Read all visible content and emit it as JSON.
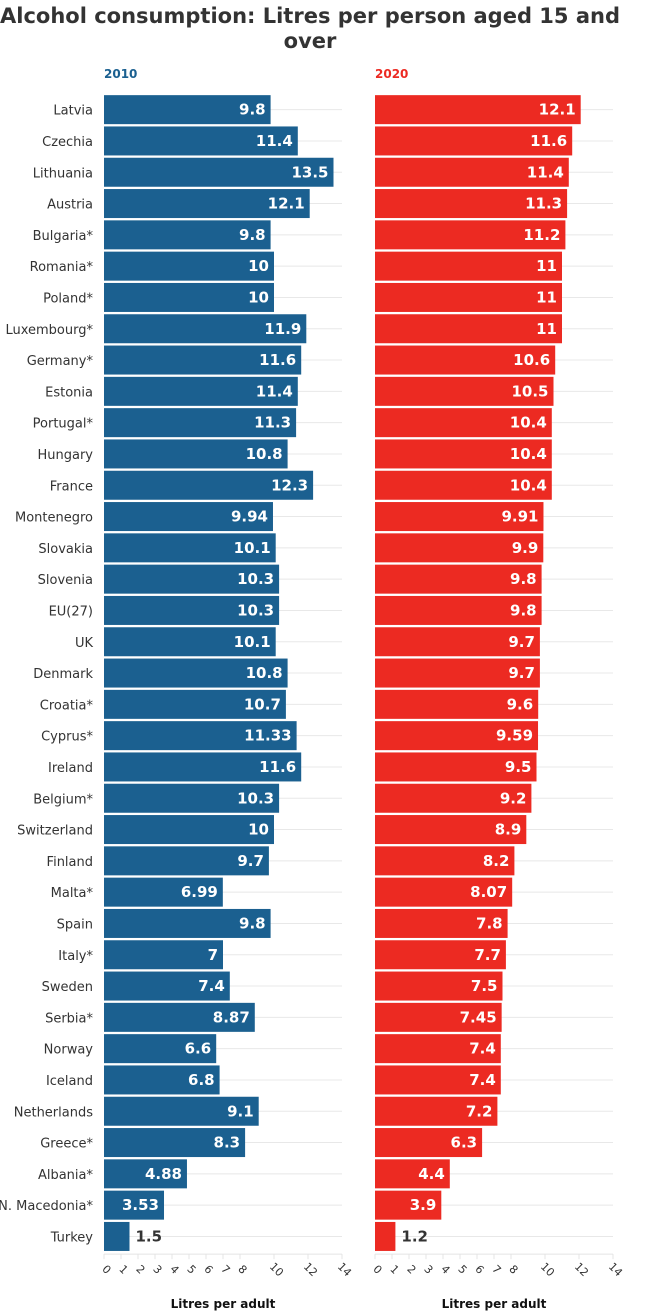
{
  "chart_data": {
    "type": "bar",
    "orientation": "horizontal",
    "title": "Alcohol consumption: Litres per person aged 15 and over",
    "categories": [
      "Latvia",
      "Czechia",
      "Lithuania",
      "Austria",
      "Bulgaria*",
      "Romania*",
      "Poland*",
      "Luxembourg*",
      "Germany*",
      "Estonia",
      "Portugal*",
      "Hungary",
      "France",
      "Montenegro",
      "Slovakia",
      "Slovenia",
      "EU(27)",
      "UK",
      "Denmark",
      "Croatia*",
      "Cyprus*",
      "Ireland",
      "Belgium*",
      "Switzerland",
      "Finland",
      "Malta*",
      "Spain",
      "Italy*",
      "Sweden",
      "Serbia*",
      "Norway",
      "Iceland",
      "Netherlands",
      "Greece*",
      "Albania*",
      "N. Macedonia*",
      "Turkey"
    ],
    "series": [
      {
        "name": "2010",
        "color": "#1b6090",
        "values": [
          9.8,
          11.4,
          13.5,
          12.1,
          9.8,
          10,
          10,
          11.9,
          11.6,
          11.4,
          11.3,
          10.8,
          12.3,
          9.94,
          10.1,
          10.3,
          10.3,
          10.1,
          10.8,
          10.7,
          11.33,
          11.6,
          10.3,
          10,
          9.7,
          6.99,
          9.8,
          7,
          7.4,
          8.87,
          6.6,
          6.8,
          9.1,
          8.3,
          4.88,
          3.53,
          1.5
        ],
        "labels": [
          "9.8",
          "11.4",
          "13.5",
          "12.1",
          "9.8",
          "10",
          "10",
          "11.9",
          "11.6",
          "11.4",
          "11.3",
          "10.8",
          "12.3",
          "9.94",
          "10.1",
          "10.3",
          "10.3",
          "10.1",
          "10.8",
          "10.7",
          "11.33",
          "11.6",
          "10.3",
          "10",
          "9.7",
          "6.99",
          "9.8",
          "7",
          "7.4",
          "8.87",
          "6.6",
          "6.8",
          "9.1",
          "8.3",
          "4.88",
          "3.53",
          "1.5"
        ]
      },
      {
        "name": "2020",
        "color": "#ec2a22",
        "values": [
          12.1,
          11.6,
          11.4,
          11.3,
          11.2,
          11,
          11,
          11,
          10.6,
          10.5,
          10.4,
          10.4,
          10.4,
          9.91,
          9.9,
          9.8,
          9.8,
          9.7,
          9.7,
          9.6,
          9.59,
          9.5,
          9.2,
          8.9,
          8.2,
          8.07,
          7.8,
          7.7,
          7.5,
          7.45,
          7.4,
          7.4,
          7.2,
          6.3,
          4.4,
          3.9,
          1.2
        ],
        "labels": [
          "12.1",
          "11.6",
          "11.4",
          "11.3",
          "11.2",
          "11",
          "11",
          "11",
          "10.6",
          "10.5",
          "10.4",
          "10.4",
          "10.4",
          "9.91",
          "9.9",
          "9.8",
          "9.8",
          "9.7",
          "9.7",
          "9.6",
          "9.59",
          "9.5",
          "9.2",
          "8.9",
          "8.2",
          "8.07",
          "7.8",
          "7.7",
          "7.5",
          "7.45",
          "7.4",
          "7.4",
          "7.2",
          "6.3",
          "4.4",
          "3.9",
          "1.2"
        ]
      }
    ],
    "xlabel": "Litres per adult",
    "ylabel": "",
    "xlim": [
      0,
      14
    ],
    "xticks": [
      0,
      1,
      2,
      3,
      4,
      5,
      6,
      7,
      8,
      10,
      12,
      14
    ],
    "xtick_labels": [
      "0",
      "1",
      "2",
      "3",
      "4",
      "5",
      "6",
      "7",
      "8",
      "10",
      "12",
      "14"
    ],
    "grid": true,
    "legend": "none (panel titles above each panel)"
  }
}
